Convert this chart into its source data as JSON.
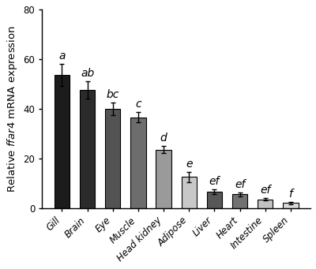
{
  "categories": [
    "Gill",
    "Brain",
    "Eye",
    "Muscle",
    "Head kidney",
    "Adipose",
    "Liver",
    "Heart",
    "Intestine",
    "Spleen"
  ],
  "values": [
    53.5,
    47.5,
    40.0,
    36.5,
    23.5,
    12.5,
    6.5,
    5.5,
    3.5,
    2.0
  ],
  "errors": [
    4.5,
    3.5,
    2.5,
    2.0,
    1.5,
    2.0,
    1.0,
    0.8,
    0.5,
    0.5
  ],
  "bar_colors": [
    "#1c1c1c",
    "#2b2b2b",
    "#535353",
    "#6d6d6d",
    "#9a9a9a",
    "#c8c8c8",
    "#575757",
    "#727272",
    "#c2c2c2",
    "#d9d9d9"
  ],
  "significance": [
    "a",
    "ab",
    "bc",
    "c",
    "d",
    "e",
    "ef",
    "ef",
    "ef",
    "f"
  ],
  "ylim": [
    0,
    80
  ],
  "yticks": [
    0,
    20,
    40,
    60,
    80
  ],
  "bar_width": 0.6,
  "sig_fontsize": 10,
  "tick_fontsize": 8.5,
  "ylabel_fontsize": 9.5,
  "background_color": "#ffffff"
}
